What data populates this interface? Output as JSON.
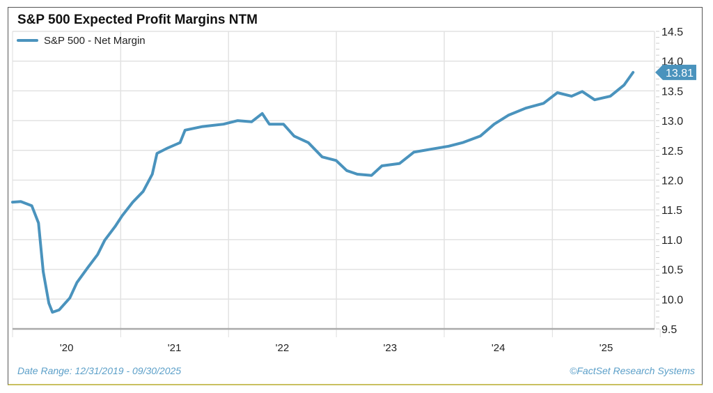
{
  "chart_data": {
    "type": "line",
    "title": "S&P 500 Expected Profit Margins NTM",
    "xlabel": "",
    "ylabel": "",
    "ylim": [
      9.5,
      14.5
    ],
    "yticks": [
      "9.5",
      "10.0",
      "10.5",
      "11.0",
      "11.5",
      "12.0",
      "12.5",
      "13.0",
      "13.5",
      "14.0",
      "14.5"
    ],
    "xlim": [
      "2019-12-31",
      "2025-12-31"
    ],
    "xticks": [
      "'20",
      "'21",
      "'22",
      "'23",
      "'24",
      "'25"
    ],
    "grid": true,
    "legend_placement": "top-left",
    "series": [
      {
        "name": "S&P 500 - Net Margin",
        "color": "#4a93bd",
        "x": [
          "2019-12-31",
          "2020-01-28",
          "2020-03-05",
          "2020-03-28",
          "2020-04-13",
          "2020-05-02",
          "2020-05-14",
          "2020-06-06",
          "2020-07-12",
          "2020-08-05",
          "2020-09-09",
          "2020-10-14",
          "2020-11-07",
          "2020-12-12",
          "2021-01-05",
          "2021-02-10",
          "2021-03-17",
          "2021-04-17",
          "2021-05-03",
          "2021-06-08",
          "2021-07-20",
          "2021-08-06",
          "2021-10-04",
          "2021-12-14",
          "2022-01-31",
          "2022-03-19",
          "2022-04-24",
          "2022-05-18",
          "2022-07-05",
          "2022-08-10",
          "2022-09-27",
          "2022-11-13",
          "2022-12-30",
          "2023-02-04",
          "2023-03-12",
          "2023-04-29",
          "2023-06-03",
          "2023-08-02",
          "2023-09-19",
          "2023-11-29",
          "2024-01-15",
          "2024-03-02",
          "2024-05-01",
          "2024-06-17",
          "2024-08-04",
          "2024-10-02",
          "2024-12-01",
          "2025-01-17",
          "2025-03-06",
          "2025-04-11",
          "2025-05-23",
          "2025-07-15",
          "2025-08-31",
          "2025-09-30"
        ],
        "values": [
          11.63,
          11.64,
          11.57,
          11.28,
          10.46,
          9.93,
          9.78,
          9.82,
          10.02,
          10.28,
          10.52,
          10.75,
          10.99,
          11.22,
          11.4,
          11.63,
          11.81,
          12.1,
          12.45,
          12.54,
          12.63,
          12.84,
          12.9,
          12.94,
          13.0,
          12.98,
          13.12,
          12.94,
          12.94,
          12.74,
          12.63,
          12.39,
          12.33,
          12.16,
          12.1,
          12.08,
          12.24,
          12.28,
          12.47,
          12.53,
          12.57,
          12.63,
          12.74,
          12.94,
          13.09,
          13.21,
          13.29,
          13.47,
          13.41,
          13.49,
          13.35,
          13.41,
          13.6,
          13.81
        ]
      }
    ],
    "last_value_label": "13.81"
  },
  "footer": {
    "date_range": "Date Range: 12/31/2019 - 09/30/2025",
    "source": "©FactSet Research Systems"
  }
}
